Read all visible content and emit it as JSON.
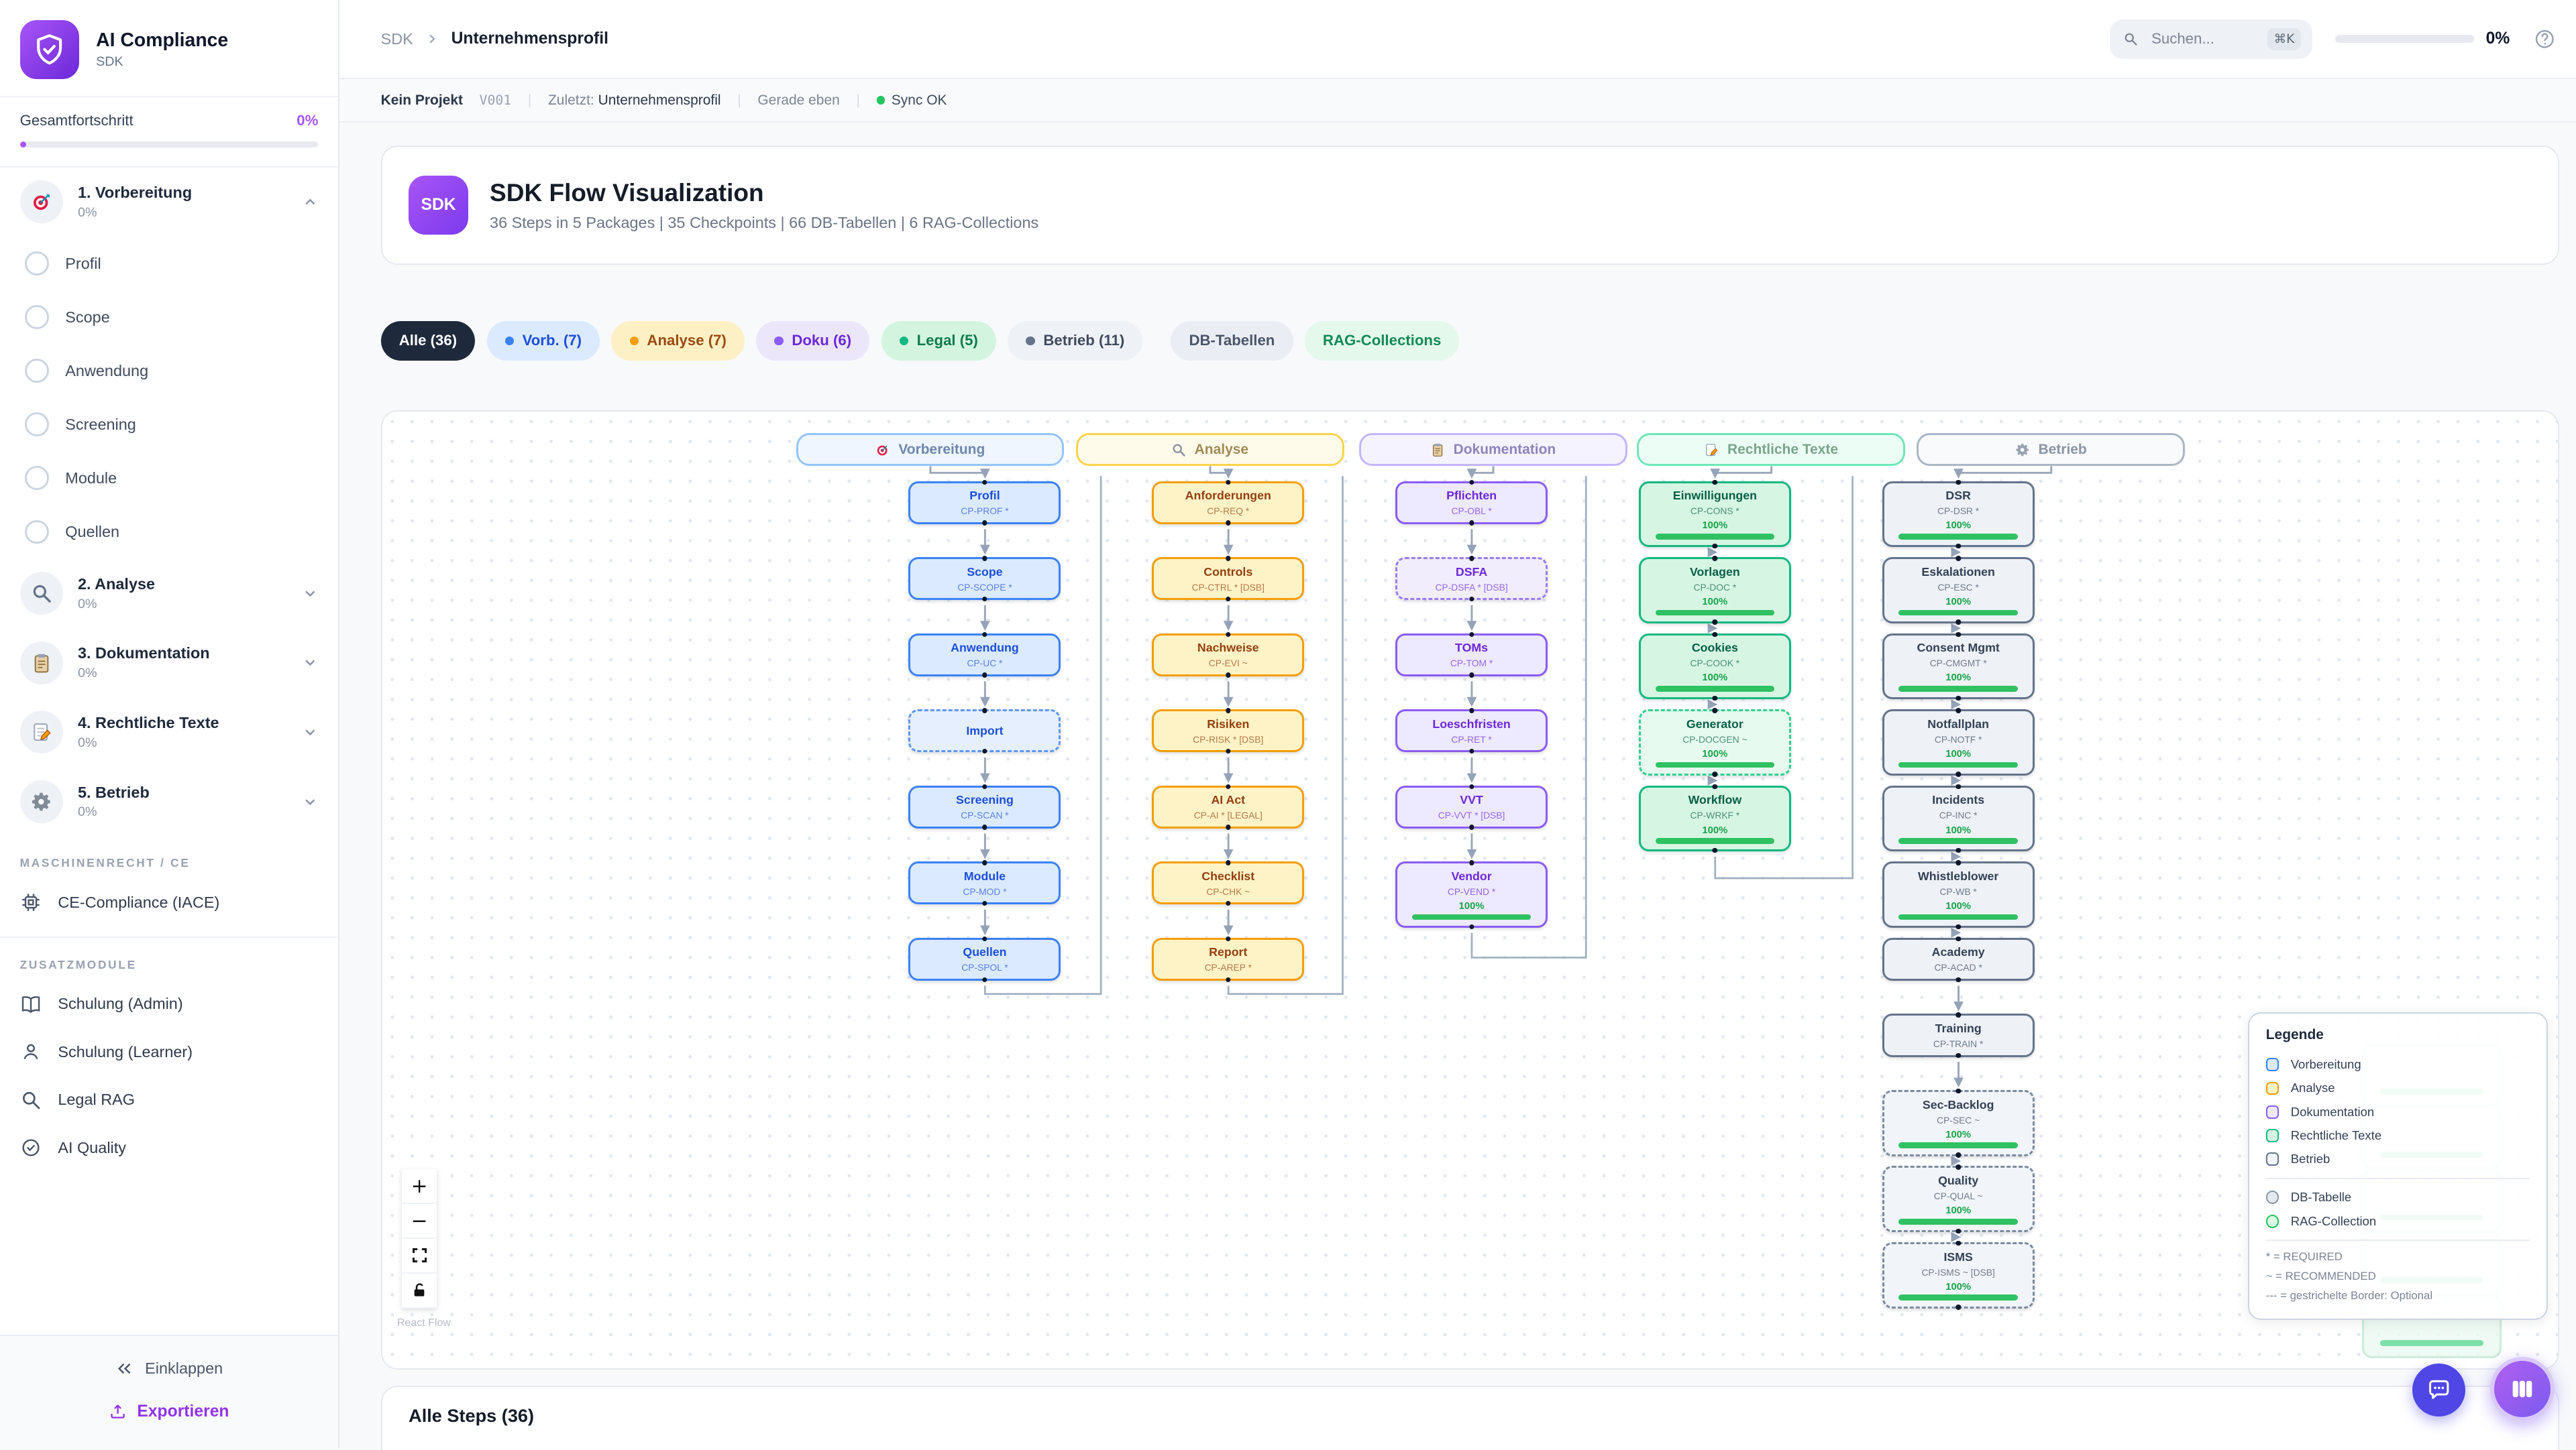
{
  "sidebar": {
    "app_title": "AI Compliance",
    "app_subtitle": "SDK",
    "overall_label": "Gesamtfortschritt",
    "overall_pct": "0%",
    "phases": [
      {
        "label": "1. Vorbereitung",
        "pct": "0%",
        "icon": "target",
        "expanded": true,
        "substeps": [
          "Profil",
          "Scope",
          "Anwendung",
          "Screening",
          "Module",
          "Quellen"
        ]
      },
      {
        "label": "2. Analyse",
        "pct": "0%",
        "icon": "magnifier"
      },
      {
        "label": "3. Dokumentation",
        "pct": "0%",
        "icon": "clipboard"
      },
      {
        "label": "4. Rechtliche Texte",
        "pct": "0%",
        "icon": "pencil"
      },
      {
        "label": "5. Betrieb",
        "pct": "0%",
        "icon": "gear"
      }
    ],
    "section1_label": "MASCHINENRECHT / CE",
    "section1_items": [
      {
        "label": "CE-Compliance (IACE)",
        "icon": "chip"
      }
    ],
    "section2_label": "ZUSATZMODULE",
    "section2_items": [
      {
        "label": "Schulung (Admin)",
        "icon": "book"
      },
      {
        "label": "Schulung (Learner)",
        "icon": "user"
      },
      {
        "label": "Legal RAG",
        "icon": "search"
      },
      {
        "label": "AI Quality",
        "icon": "check-circle"
      }
    ],
    "collapse_label": "Einklappen",
    "export_label": "Exportieren"
  },
  "topbar": {
    "breadcrumb_root": "SDK",
    "breadcrumb_current": "Unternehmensprofil",
    "search_placeholder": "Suchen...",
    "search_kbd": "⌘K",
    "progress_pct": "0%"
  },
  "statusbar": {
    "project": "Kein Projekt",
    "version": "V001",
    "last_label": "Zuletzt:",
    "last_value": "Unternehmensprofil",
    "time": "Gerade eben",
    "sync": "Sync OK"
  },
  "header_card": {
    "badge": "SDK",
    "title": "SDK Flow Visualization",
    "subtitle": "36 Steps in 5 Packages | 35 Checkpoints | 66 DB-Tabellen | 6 RAG-Collections"
  },
  "filters": {
    "chips": [
      {
        "label": "Alle (36)"
      },
      {
        "label": "Vorb. (7)"
      },
      {
        "label": "Analyse (7)"
      },
      {
        "label": "Doku (6)"
      },
      {
        "label": "Legal (5)"
      },
      {
        "label": "Betrieb (11)"
      },
      {
        "label": "DB-Tabellen"
      },
      {
        "label": "RAG-Collections"
      }
    ]
  },
  "flow": {
    "packages": [
      {
        "label": "Vorbereitung",
        "icon": "target",
        "color": "blue",
        "nodes": [
          {
            "t": "Profil",
            "c": "CP-PROF *"
          },
          {
            "t": "Scope",
            "c": "CP-SCOPE *"
          },
          {
            "t": "Anwendung",
            "c": "CP-UC *"
          },
          {
            "t": "Import",
            "d": true
          },
          {
            "t": "Screening",
            "c": "CP-SCAN *"
          },
          {
            "t": "Module",
            "c": "CP-MOD *"
          },
          {
            "t": "Quellen",
            "c": "CP-SPOL *"
          }
        ]
      },
      {
        "label": "Analyse",
        "icon": "magnifier",
        "color": "amber",
        "nodes": [
          {
            "t": "Anforderungen",
            "c": "CP-REQ *"
          },
          {
            "t": "Controls",
            "c": "CP-CTRL * [DSB]"
          },
          {
            "t": "Nachweise",
            "c": "CP-EVI ~"
          },
          {
            "t": "Risiken",
            "c": "CP-RISK * [DSB]"
          },
          {
            "t": "AI Act",
            "c": "CP-AI * [LEGAL]"
          },
          {
            "t": "Checklist",
            "c": "CP-CHK ~"
          },
          {
            "t": "Report",
            "c": "CP-AREP *"
          }
        ]
      },
      {
        "label": "Dokumentation",
        "icon": "clipboard",
        "color": "purple",
        "nodes": [
          {
            "t": "Pflichten",
            "c": "CP-OBL *"
          },
          {
            "t": "DSFA",
            "c": "CP-DSFA * [DSB]",
            "d": true
          },
          {
            "t": "TOMs",
            "c": "CP-TOM *"
          },
          {
            "t": "Loeschfristen",
            "c": "CP-RET *"
          },
          {
            "t": "VVT",
            "c": "CP-VVT * [DSB]"
          },
          {
            "t": "Vendor",
            "c": "CP-VEND *",
            "p": "100%"
          }
        ]
      },
      {
        "label": "Rechtliche Texte",
        "icon": "pencil",
        "color": "green",
        "nodes": [
          {
            "t": "Einwilligungen",
            "c": "CP-CONS *",
            "p": "100%"
          },
          {
            "t": "Vorlagen",
            "c": "CP-DOC *",
            "p": "100%"
          },
          {
            "t": "Cookies",
            "c": "CP-COOK *",
            "p": "100%"
          },
          {
            "t": "Generator",
            "c": "CP-DOCGEN ~",
            "p": "100%",
            "d": true
          },
          {
            "t": "Workflow",
            "c": "CP-WRKF *",
            "p": "100%"
          }
        ]
      },
      {
        "label": "Betrieb",
        "icon": "gear",
        "color": "slate",
        "nodes": [
          {
            "t": "DSR",
            "c": "CP-DSR *",
            "p": "100%"
          },
          {
            "t": "Eskalationen",
            "c": "CP-ESC *",
            "p": "100%"
          },
          {
            "t": "Consent Mgmt",
            "c": "CP-CMGMT *",
            "p": "100%"
          },
          {
            "t": "Notfallplan",
            "c": "CP-NOTF *",
            "p": "100%"
          },
          {
            "t": "Incidents",
            "c": "CP-INC *",
            "p": "100%"
          },
          {
            "t": "Whistleblower",
            "c": "CP-WB *",
            "p": "100%"
          },
          {
            "t": "Academy",
            "c": "CP-ACAD *"
          },
          {
            "t": "Training",
            "c": "CP-TRAIN *"
          },
          {
            "t": "Sec-Backlog",
            "c": "CP-SEC ~",
            "p": "100%",
            "d": true
          },
          {
            "t": "Quality",
            "c": "CP-QUAL ~",
            "p": "100%",
            "d": true
          },
          {
            "t": "ISMS",
            "c": "CP-ISMS ~ [DSB]",
            "p": "100%",
            "d": true
          }
        ]
      }
    ],
    "legend": {
      "title": "Legende",
      "items": [
        {
          "label": "Vorbereitung"
        },
        {
          "label": "Analyse"
        },
        {
          "label": "Dokumentation"
        },
        {
          "label": "Rechtliche Texte"
        },
        {
          "label": "Betrieb"
        },
        {
          "label": "DB-Tabelle"
        },
        {
          "label": "RAG-Collection"
        }
      ],
      "notes": [
        "* = REQUIRED",
        "~ = RECOMMENDED",
        "--- = gestrichelte Border: Optional"
      ]
    },
    "attribution": "React Flow"
  },
  "bottom": {
    "heading": "Alle Steps (36)"
  },
  "colors": {
    "accent": "#7c3aed",
    "sidebar_progress": "#a855f7",
    "sync_ok": "#22c55e",
    "package_blue": "#3b82f6",
    "package_amber": "#f59e0b",
    "package_purple": "#8b5cf6",
    "package_green": "#10b981",
    "package_slate": "#64748b",
    "progress_bar": "#2fc162"
  }
}
